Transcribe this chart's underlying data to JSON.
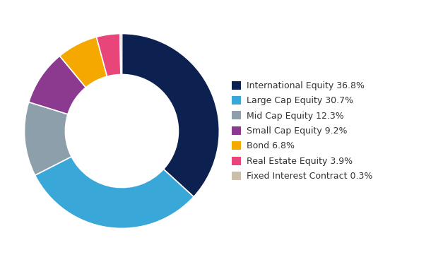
{
  "labels": [
    "International Equity 36.8%",
    "Large Cap Equity 30.7%",
    "Mid Cap Equity 12.3%",
    "Small Cap Equity 9.2%",
    "Bond 6.8%",
    "Real Estate Equity 3.9%",
    "Fixed Interest Contract 0.3%"
  ],
  "values": [
    36.8,
    30.7,
    12.3,
    9.2,
    6.8,
    3.9,
    0.3
  ],
  "colors": [
    "#0d2150",
    "#39a8d8",
    "#8e9fac",
    "#8b3a8f",
    "#f5a800",
    "#e8457a",
    "#c9bfaa"
  ],
  "background_color": "#ffffff",
  "donut_width": 0.42,
  "start_angle": 90,
  "legend_fontsize": 9.0,
  "fig_width": 6.27,
  "fig_height": 3.71
}
